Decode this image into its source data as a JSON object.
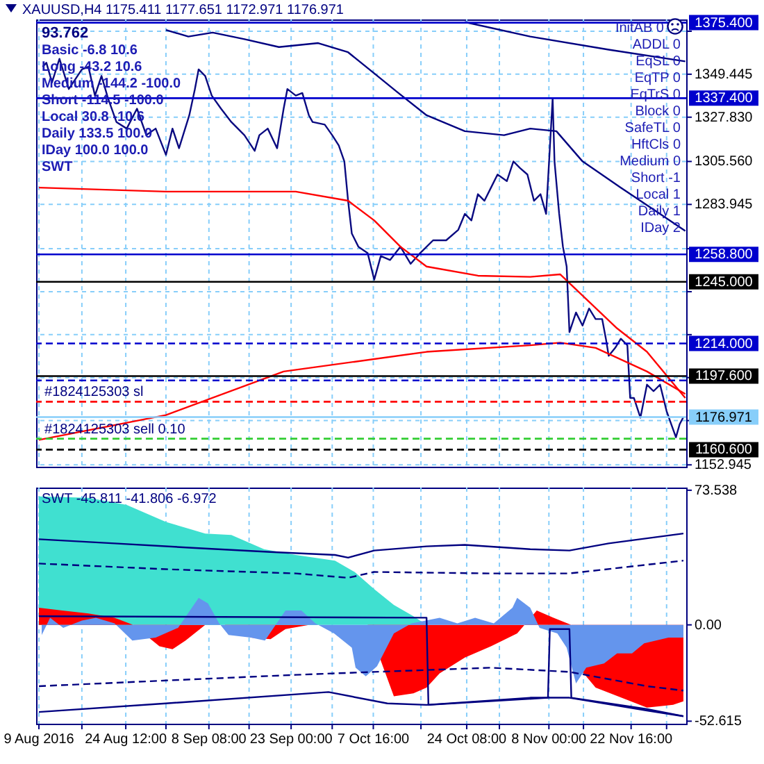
{
  "chart_data": [
    {
      "type": "line",
      "title": "XAUUSD,H4 1175.411 1177.651 1172.971 1176.971",
      "tick_labels": "y",
      "grid": true,
      "xlim": [
        "2016-08-08T12:00",
        "2016-12-02T12:00"
      ],
      "xticks": [
        {
          "value": "2016-08-09T00:00",
          "label": null
        },
        {
          "value": "2016-08-16T16:00",
          "label": null
        },
        {
          "value": "2016-08-24T12:00",
          "label": null
        },
        {
          "value": "2016-08-31T16:00",
          "label": null
        },
        {
          "value": "2016-09-08T08:00",
          "label": null
        },
        {
          "value": "2016-09-15T12:00",
          "label": null
        },
        {
          "value": "2016-09-23T00:00",
          "label": null
        },
        {
          "value": "2016-09-30T08:00",
          "label": null
        },
        {
          "value": "2016-10-07T16:00",
          "label": null
        },
        {
          "value": "2016-10-16T04:00",
          "label": null
        },
        {
          "value": "2016-10-24T08:00",
          "label": null
        },
        {
          "value": "2016-10-30T04:00",
          "label": null
        },
        {
          "value": "2016-11-08T00:00",
          "label": null
        },
        {
          "value": "2016-11-14T04:00",
          "label": null
        },
        {
          "value": "2016-11-22T16:00",
          "label": null
        },
        {
          "value": "2016-11-29T00:00",
          "label": null
        }
      ],
      "ylim": [
        1152,
        1377
      ],
      "yticks": [
        {
          "value": 1371.06,
          "label": null
        },
        1349.445,
        {
          "value": 1327.83,
          "label": "1327.830"
        },
        {
          "value": 1305.56,
          "label": "1305.560"
        },
        1283.945,
        {
          "value": 1261.675,
          "label": null
        },
        {
          "value": 1240.06,
          "label": null
        },
        {
          "value": 1218.445,
          "label": null
        },
        {
          "value": 1196.83,
          "label": null
        },
        {
          "value": 1175.215,
          "label": null
        },
        1152.945
      ],
      "series": [
        {
          "color": "#0a0a80",
          "x": [
            "2016-08-09T16:00",
            "2016-08-10T08:00",
            "2016-08-11T08:00",
            "2016-08-12T16:00",
            "2016-08-14T08:00",
            "2016-08-16T16:00",
            "2016-08-17T20:00",
            "2016-08-19T00:00",
            "2016-08-20T04:00",
            "2016-08-21T08:00",
            "2016-08-22T20:00",
            "2016-08-24T16:00",
            "2016-08-26T12:00",
            "2016-08-28T04:00",
            "2016-08-29T20:00",
            "2016-08-31T16:00",
            "2016-09-01T20:00",
            "2016-09-03T00:00",
            "2016-09-04T20:00",
            "2016-09-05T20:00",
            "2016-09-06T12:00",
            "2016-09-07T16:00",
            "2016-09-08T20:00",
            "2016-09-10T12:00",
            "2016-09-12T08:00",
            "2016-09-14T16:00",
            "2016-09-16T12:00",
            "2016-09-17T08:00",
            "2016-09-18T20:00",
            "2016-09-20T12:00",
            "2016-09-21T16:00",
            "2016-09-22T08:00",
            "2016-09-23T20:00",
            "2016-09-25T00:00",
            "2016-09-26T04:00",
            "2016-09-26T20:00",
            "2016-09-29T00:00",
            "2016-09-30T08:00",
            "2016-10-01T12:00",
            "2016-10-02T12:00",
            "2016-10-03T04:00",
            "2016-10-03T20:00",
            "2016-10-05T00:00",
            "2016-10-06T16:00",
            "2016-10-07T20:00",
            "2016-10-09T00:00",
            "2016-10-10T16:00",
            "2016-10-12T12:00",
            "2016-10-14T08:00",
            "2016-10-16T00:00",
            "2016-10-18T08:00",
            "2016-10-20T16:00",
            "2016-10-22T20:00",
            "2016-10-24T00:00",
            "2016-10-25T04:00",
            "2016-10-26T08:00",
            "2016-10-27T12:00",
            "2016-10-28T16:00",
            "2016-10-29T20:00",
            "2016-10-31T12:00",
            "2016-11-01T16:00",
            "2016-11-02T20:00",
            "2016-11-04T04:00",
            "2016-11-05T08:00",
            "2016-11-06T12:00",
            "2016-11-07T12:00",
            "2016-11-08T04:00",
            "2016-11-08T16:00",
            "2016-11-09T00:00",
            "2016-11-09T20:00",
            "2016-11-10T12:00",
            "2016-11-11T04:00",
            "2016-11-11T16:00",
            "2016-11-12T20:00",
            "2016-11-14T00:00",
            "2016-11-15T04:00",
            "2016-11-16T08:00",
            "2016-11-17T12:00",
            "2016-11-18T04:00",
            "2016-11-18T16:00",
            "2016-11-19T20:00",
            "2016-11-20T20:00",
            "2016-11-22T00:00",
            "2016-11-22T12:00",
            "2016-11-23T04:00",
            "2016-11-24T08:00",
            "2016-11-25T12:00",
            "2016-11-26T16:00",
            "2016-11-27T20:00",
            "2016-11-29T00:00",
            "2016-11-29T16:00",
            "2016-11-30T16:00",
            "2016-12-01T08:00",
            "2016-12-02T00:00"
          ],
          "values": [
            1353.2,
            1355.2,
            1345.3,
            1357.2,
            1342.0,
            1351.9,
            1353.2,
            1338.7,
            1348.6,
            1337.3,
            1325.4,
            1322.1,
            1332.1,
            1318.8,
            1322.1,
            1308.9,
            1322.1,
            1312.2,
            1328.8,
            1342.0,
            1351.9,
            1348.6,
            1338.7,
            1332.1,
            1325.4,
            1318.8,
            1310.9,
            1318.8,
            1322.1,
            1312.2,
            1332.1,
            1342.0,
            1338.7,
            1340.0,
            1328.8,
            1325.4,
            1324.1,
            1318.8,
            1313.6,
            1305.6,
            1285.8,
            1269.3,
            1262.7,
            1259.4,
            1246.1,
            1258.0,
            1256.0,
            1262.7,
            1254.1,
            1259.4,
            1265.9,
            1265.9,
            1271.2,
            1279.2,
            1275.9,
            1289.1,
            1285.8,
            1292.4,
            1299.0,
            1295.7,
            1305.6,
            1302.3,
            1299.0,
            1285.8,
            1289.1,
            1279.2,
            1312.2,
            1337.3,
            1305.6,
            1279.2,
            1262.7,
            1252.7,
            1219.7,
            1229.6,
            1223.0,
            1231.6,
            1226.3,
            1226.3,
            1216.4,
            1207.8,
            1211.8,
            1216.4,
            1213.1,
            1186.6,
            1186.6,
            1176.7,
            1193.3,
            1190.0,
            1193.3,
            1180.0,
            1174.7,
            1166.8,
            1173.4,
            1176.971
          ]
        },
        {
          "color": "#000080",
          "x": [
            "2016-08-31T16:00",
            "2016-09-04T16:00",
            "2016-09-09T00:00",
            "2016-09-14T16:00",
            "2016-09-20T20:00",
            "2016-09-27T20:00",
            "2016-10-03T04:00",
            "2016-10-07T20:00",
            "2016-10-11T20:00",
            "2016-10-17T04:00",
            "2016-10-24T00:00",
            "2016-10-31T00:00",
            "2016-11-04T16:00",
            "2016-11-09T08:00",
            "2016-11-14T00:00",
            "2016-11-20T20:00",
            "2016-11-27T20:00",
            "2016-12-02T08:00"
          ],
          "values": [
            1371.7,
            1368.4,
            1370.4,
            1367.1,
            1363.1,
            1365.1,
            1360.5,
            1349.9,
            1340.7,
            1328.8,
            1320.8,
            1318.8,
            1322.1,
            1320.8,
            1305.6,
            1292.4,
            1279.2,
            1270.6
          ]
        },
        {
          "color": "#000080",
          "x": [
            "2016-10-24T00:00",
            "2016-11-04T16:00",
            "2016-11-18T16:00",
            "2016-12-02T08:00"
          ],
          "values": [
            1375.7,
            1368.4,
            1361.8,
            1355.9
          ]
        },
        {
          "color": "#ff0000",
          "x": [
            "2016-08-09T00:00",
            "2016-08-31T16:00",
            "2016-09-23T20:00",
            "2016-10-03T04:00",
            "2016-10-07T20:00",
            "2016-10-12T12:00",
            "2016-10-17T04:00",
            "2016-10-26T08:00",
            "2016-11-04T16:00",
            "2016-11-10T00:00",
            "2016-11-20T04:00",
            "2016-11-25T12:00",
            "2016-12-02T08:00"
          ],
          "values": [
            1292.4,
            1290.4,
            1290.4,
            1285.8,
            1275.9,
            1262.7,
            1252.7,
            1248.1,
            1247.5,
            1248.8,
            1221.6,
            1209.8,
            1186.6
          ]
        },
        {
          "color": "#ff0000",
          "x": [
            "2016-08-09T00:00",
            "2016-08-31T16:00",
            "2016-09-21T16:00",
            "2016-10-17T04:00",
            "2016-11-04T16:00",
            "2016-11-10T00:00",
            "2016-11-16T08:00",
            "2016-11-25T12:00",
            "2016-12-02T08:00"
          ],
          "values": [
            1165.5,
            1178.0,
            1199.9,
            1209.8,
            1213.1,
            1214.4,
            1211.8,
            1199.9,
            1188.6
          ]
        }
      ],
      "ref_lines": [
        {
          "axis": "y",
          "value": 1375.4,
          "label": "1375.400",
          "color": "#0000cd"
        },
        {
          "axis": "y",
          "value": 1337.4,
          "label": "1337.400",
          "color": "#0000cd"
        },
        {
          "axis": "y",
          "value": 1258.8,
          "label": "1258.800",
          "color": "#0000cd"
        },
        {
          "axis": "y",
          "value": 1245.0,
          "label": "1245.000",
          "color": "#000000"
        },
        {
          "axis": "y",
          "value": 1214.0,
          "label": "1214.000",
          "color": "#0000cd",
          "line_style": "dashed"
        },
        {
          "axis": "y",
          "value": 1197.6,
          "label": "1197.600",
          "color": "#000000"
        },
        {
          "axis": "y",
          "value": 1195.4,
          "color": "#0000cd",
          "line_style": "dashed"
        },
        {
          "axis": "y",
          "value": 1184.7,
          "color": "#ff0000",
          "line_style": "dashed"
        },
        {
          "axis": "y",
          "value": 1176.971,
          "label": "1176.971",
          "color": "#87cefa"
        },
        {
          "axis": "y",
          "value": 1166.1,
          "color": "#32cd32",
          "line_style": "dashed"
        },
        {
          "axis": "y",
          "value": 1160.6,
          "label": "1160.600",
          "color": "#000000",
          "line_style": "dashed"
        }
      ],
      "annotations": [
        "93.762",
        "Basic -6.8 10.6",
        "Long -43.2 10.6",
        "Medium -144.2 -100.0",
        "Short -114.5 -100.0",
        "Local 30.8 -10.6",
        "Daily 133.5 100.0",
        "IDay 100.0 100.0",
        "SWT",
        "InitAB 0",
        "ADDL 0",
        "EqSL 0",
        "EqTP 0",
        "EqTrS 0",
        "Block 0",
        "SafeTL 0",
        "HftCls 0",
        "Medium 0",
        "Short -1",
        "Local 1",
        "Daily 1",
        "IDay 2",
        {
          "text": "#1824125303 sl",
          "x": "2016-08-10T00:00",
          "y": 1184.7
        },
        {
          "text": "#1824125303 sell 0.10",
          "x": "2016-08-10T00:00",
          "y": 1166.1
        }
      ]
    },
    {
      "type": "area",
      "title": "SWT -45.811 -41.806 -6.972",
      "grid": "x",
      "xlim": [
        "2016-08-08T12:00",
        "2016-12-02T12:00"
      ],
      "xticks": [
        {
          "value": "2016-08-09T00:00",
          "label": "9 Aug 2016"
        },
        {
          "value": "2016-08-16T16:00",
          "label": null
        },
        {
          "value": "2016-08-24T12:00",
          "label": "24 Aug 12:00"
        },
        {
          "value": "2016-08-31T16:00",
          "label": null
        },
        {
          "value": "2016-09-08T08:00",
          "label": "8 Sep 08:00"
        },
        {
          "value": "2016-09-15T12:00",
          "label": null
        },
        {
          "value": "2016-09-23T00:00",
          "label": "23 Sep 00:00"
        },
        {
          "value": "2016-09-30T08:00",
          "label": null
        },
        {
          "value": "2016-10-07T16:00",
          "label": "7 Oct 16:00"
        },
        {
          "value": "2016-10-16T04:00",
          "label": null
        },
        {
          "value": "2016-10-24T08:00",
          "label": "24 Oct 08:00"
        },
        {
          "value": "2016-10-30T04:00",
          "label": null
        },
        {
          "value": "2016-11-08T00:00",
          "label": "8 Nov 00:00"
        },
        {
          "value": "2016-11-14T04:00",
          "label": null
        },
        {
          "value": "2016-11-22T16:00",
          "label": "22 Nov 16:00"
        },
        {
          "value": "2016-11-29T00:00",
          "label": null
        }
      ],
      "ylim": [
        -54,
        75
      ],
      "yticks": [
        73.538,
        {
          "value": 0,
          "label": "0.00"
        },
        -52.615
      ],
      "series": [
        {
          "color": "#40e0d0",
          "x": [
            "2016-08-09T00:00",
            "2016-08-17T20:00",
            "2016-08-24T16:00",
            "2016-08-31T16:00",
            "2016-09-07T16:00",
            "2016-09-12T08:00",
            "2016-09-18T04:00",
            "2016-09-23T20:00",
            "2016-09-30T20:00",
            "2016-10-04T08:00",
            "2016-10-07T20:00",
            "2016-10-11T08:00",
            "2016-10-14T20:00",
            "2016-10-17T04:00"
          ],
          "values": [
            70.2,
            69.4,
            65.5,
            56.2,
            49.9,
            49.1,
            41.3,
            38.2,
            35.1,
            28.9,
            19.5,
            10.9,
            4.7,
            0
          ]
        },
        {
          "color": "#ff0000",
          "x": [
            "2016-08-09T00:00",
            "2016-08-13T04:00",
            "2016-08-17T20:00",
            "2016-08-22T12:00",
            "2016-08-25T20:00",
            "2016-08-30T12:00",
            "2016-09-01T20:00",
            "2016-09-04T04:00",
            "2016-09-07T16:00",
            "2016-09-11T04:00",
            "2016-09-15T20:00",
            "2016-09-19T08:00",
            "2016-09-22T00:00",
            "2016-09-26T04:00",
            "2016-09-30T20:00",
            "2016-10-06T16:00",
            "2016-10-11T08:00",
            "2016-10-14T20:00",
            "2016-10-17T04:00",
            "2016-10-19T12:00",
            "2016-10-24T00:00",
            "2016-10-28T16:00",
            "2016-11-02T08:00",
            "2016-11-05T20:00",
            "2016-11-08T20:00",
            "2016-11-12T00:00",
            "2016-11-14T00:00",
            "2016-11-16T08:00",
            "2016-11-25T12:00",
            "2016-11-30T04:00",
            "2016-12-02T00:00"
          ],
          "values": [
            9.4,
            7.8,
            6.2,
            3.9,
            null,
            -11.7,
            -13.3,
            -8.6,
            null,
            null,
            -7.0,
            -7.8,
            -2.3,
            null,
            null,
            null,
            -39.0,
            -37.4,
            -34.3,
            -26.5,
            -17.9,
            -11.7,
            -4.7,
            7.8,
            3.9,
            null,
            -25.7,
            -34.3,
            -45.2,
            -43.7,
            -41.8
          ]
        },
        {
          "color": "#6495ed",
          "x": [
            "2016-08-09T12:00",
            "2016-08-11T00:00",
            "2016-08-13T08:00",
            "2016-08-16T16:00",
            "2016-08-19T04:00",
            "2016-08-22T12:00",
            "2016-08-25T16:00",
            "2016-08-29T20:00",
            "2016-09-02T20:00",
            "2016-09-06T12:00",
            "2016-09-08T04:00",
            "2016-09-10T04:00",
            "2016-09-11T20:00",
            "2016-09-15T20:00",
            "2016-09-18T08:00",
            "2016-09-22T00:00",
            "2016-09-24T20:00",
            "2016-09-27T08:00",
            "2016-09-30T16:00",
            "2016-10-03T20:00",
            "2016-10-04T12:00",
            "2016-10-06T08:00",
            "2016-10-08T08:00",
            "2016-10-11T08:00",
            "2016-10-14T12:00",
            "2016-10-19T12:00",
            "2016-10-22T16:00",
            "2016-10-25T20:00",
            "2016-10-29T04:00",
            "2016-11-01T12:00",
            "2016-11-02T08:00",
            "2016-11-04T16:00",
            "2016-11-06T08:00",
            "2016-11-09T12:00",
            "2016-11-11T04:00",
            "2016-11-12T20:00",
            "2016-11-14T16:00",
            "2016-11-17T20:00",
            "2016-11-20T04:00",
            "2016-11-22T20:00",
            "2016-11-25T00:00",
            "2016-11-29T08:00",
            "2016-12-02T00:00"
          ],
          "values": [
            -5.5,
            3.9,
            -1.6,
            2.3,
            3.9,
            0.8,
            -8.6,
            -7.0,
            -1.6,
            14.8,
            11.7,
            0.8,
            -5.5,
            -7.0,
            -8.6,
            7.8,
            7.8,
            0.8,
            -4.7,
            -12.5,
            -23.4,
            -28.1,
            -22.6,
            -4.7,
            0.8,
            3.9,
            0.8,
            3.9,
            0.8,
            9.4,
            14.8,
            9.4,
            -1.6,
            -4.7,
            -12.5,
            -32.0,
            -23.4,
            -21.1,
            -15.6,
            -15.6,
            -10.1,
            -7.0,
            -7.0
          ]
        },
        {
          "type": "line",
          "color": "#000080",
          "x": [
            "2016-08-09T00:00",
            "2016-08-22T12:00",
            "2016-09-05T08:00",
            "2016-09-19T08:00",
            "2016-09-30T20:00",
            "2016-10-03T04:00",
            "2016-10-07T20:00",
            "2016-10-17T04:00",
            "2016-10-24T00:00",
            "2016-11-04T16:00",
            "2016-11-11T16:00",
            "2016-11-18T16:00",
            "2016-12-02T00:00"
          ],
          "values": [
            46.8,
            44.5,
            42.1,
            39.8,
            38.2,
            36.7,
            40.6,
            42.9,
            43.7,
            41.3,
            40.6,
            44.5,
            49.9
          ]
        },
        {
          "type": "line",
          "color": "#000080",
          "line_style": "dashed",
          "x": [
            "2016-08-09T00:00",
            "2016-08-31T16:00",
            "2016-09-23T20:00",
            "2016-10-03T04:00",
            "2016-10-07T20:00",
            "2016-10-28T16:00",
            "2016-11-11T16:00",
            "2016-12-02T00:00"
          ],
          "values": [
            33.5,
            30.4,
            28.1,
            25.7,
            28.9,
            28.1,
            28.1,
            35.1
          ]
        },
        {
          "type": "line",
          "color": "#000080",
          "line_style": "dashed",
          "x": [
            "2016-08-09T00:00",
            "2016-08-31T16:00",
            "2016-09-23T20:00",
            "2016-10-07T20:00",
            "2016-10-28T16:00",
            "2016-11-11T16:00",
            "2016-11-25T12:00",
            "2016-12-02T00:00"
          ],
          "values": [
            -33.5,
            -30.4,
            -27.3,
            -25.7,
            -23.4,
            -25.7,
            -33.5,
            -35.9
          ]
        },
        {
          "type": "line",
          "color": "#000080",
          "x": [
            "2016-08-09T00:00",
            "2016-08-31T16:00",
            "2016-09-29T16:00",
            "2016-10-10T04:00",
            "2016-10-17T04:00",
            "2016-11-04T16:00",
            "2016-11-11T16:00",
            "2016-11-25T12:00",
            "2016-12-02T00:00"
          ],
          "values": [
            -47.6,
            -42.9,
            -36.7,
            -42.9,
            -43.7,
            -39.8,
            -39.8,
            -46.8,
            -49.9
          ]
        },
        {
          "type": "line",
          "color": "#000080",
          "x": [
            "2016-08-09T00:00",
            "2016-10-17T04:00",
            "2016-10-17T12:00",
            "2016-11-07T20:00",
            "2016-11-08T04:00",
            "2016-11-11T16:00",
            "2016-11-12T00:00",
            "2016-11-25T12:00",
            "2016-12-02T00:00"
          ],
          "values": [
            4.7,
            3.9,
            -43.7,
            -39.8,
            -2.3,
            -2.3,
            -39.8,
            -46.0,
            -49.9
          ]
        }
      ]
    }
  ]
}
